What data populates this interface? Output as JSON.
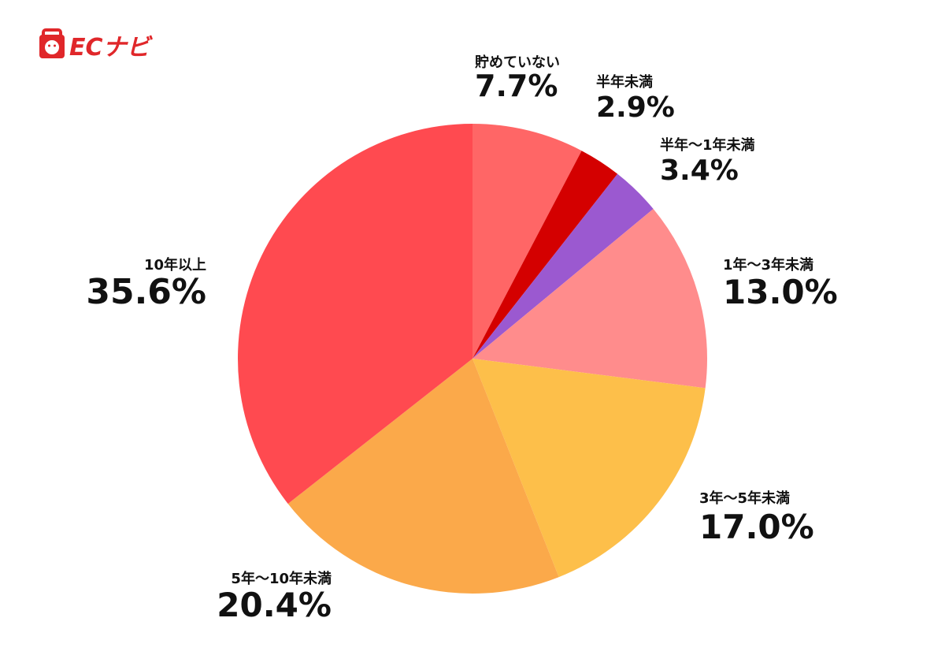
{
  "logo": "ECナビ",
  "chart_data": {
    "type": "pie",
    "categories": [
      "貯めていない",
      "半年未満",
      "半年〜1年未満",
      "1年〜3年未満",
      "3年〜5年未満",
      "5年〜10年未満",
      "10年以上"
    ],
    "values": [
      7.7,
      2.9,
      3.4,
      13.0,
      17.0,
      20.4,
      35.6
    ],
    "value_labels": [
      "7.7%",
      "2.9%",
      "3.4%",
      "13.0%",
      "17.0%",
      "20.4%",
      "35.6%"
    ],
    "colors": [
      "#ff6666",
      "#d40000",
      "#9b59d0",
      "#ff8c8c",
      "#fdbf4a",
      "#fba94a",
      "#ff4a50"
    ]
  }
}
